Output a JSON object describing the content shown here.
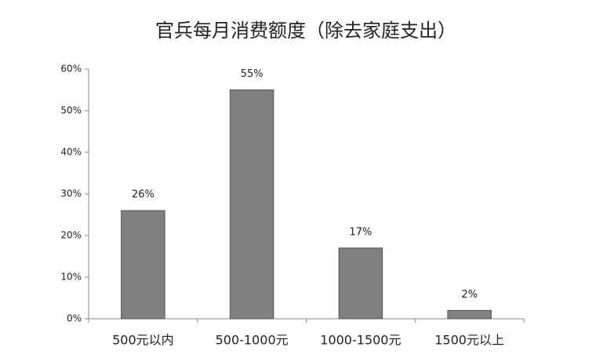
{
  "chart_data": {
    "type": "bar",
    "title": "官兵每月消费额度（除去家庭支出）",
    "categories": [
      "500元以内",
      "500-1000元",
      "1000-1500元",
      "1500元以上"
    ],
    "values": [
      26,
      55,
      17,
      2
    ],
    "value_labels": [
      "26%",
      "55%",
      "17%",
      "2%"
    ],
    "color": "#808080",
    "ylim": [
      0,
      60
    ],
    "yticks": [
      {
        "value": 0,
        "label": "0%"
      },
      {
        "value": 10,
        "label": "10%"
      },
      {
        "value": 20,
        "label": "20%"
      },
      {
        "value": 30,
        "label": "30%"
      },
      {
        "value": 40,
        "label": "40%"
      },
      {
        "value": 50,
        "label": "50%"
      },
      {
        "value": 60,
        "label": "60%"
      }
    ],
    "grid": false
  }
}
